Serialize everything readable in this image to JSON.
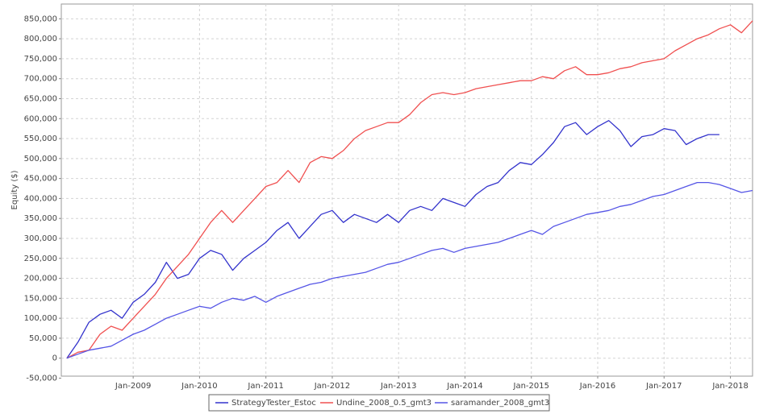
{
  "chart_data": {
    "type": "line",
    "y_label": "Equity ($)",
    "x": [
      "2008-01",
      "2008-03",
      "2008-05",
      "2008-07",
      "2008-09",
      "2008-11",
      "2009-01",
      "2009-03",
      "2009-05",
      "2009-07",
      "2009-09",
      "2009-11",
      "2010-01",
      "2010-03",
      "2010-05",
      "2010-07",
      "2010-09",
      "2010-11",
      "2011-01",
      "2011-03",
      "2011-05",
      "2011-07",
      "2011-09",
      "2011-11",
      "2012-01",
      "2012-03",
      "2012-05",
      "2012-07",
      "2012-09",
      "2012-11",
      "2013-01",
      "2013-03",
      "2013-05",
      "2013-07",
      "2013-09",
      "2013-11",
      "2014-01",
      "2014-03",
      "2014-05",
      "2014-07",
      "2014-09",
      "2014-11",
      "2015-01",
      "2015-03",
      "2015-05",
      "2015-07",
      "2015-09",
      "2015-11",
      "2016-01",
      "2016-03",
      "2016-05",
      "2016-07",
      "2016-09",
      "2016-11",
      "2017-01",
      "2017-03",
      "2017-05",
      "2017-07",
      "2017-09",
      "2017-11",
      "2018-01",
      "2018-03",
      "2018-05"
    ],
    "series": [
      {
        "name": "StrategyTester_Estoc",
        "color": "#3333cc",
        "values": [
          0,
          40000,
          90000,
          110000,
          120000,
          100000,
          140000,
          160000,
          190000,
          240000,
          200000,
          210000,
          250000,
          270000,
          260000,
          220000,
          250000,
          270000,
          290000,
          320000,
          340000,
          300000,
          330000,
          360000,
          370000,
          340000,
          360000,
          350000,
          340000,
          360000,
          340000,
          370000,
          380000,
          370000,
          400000,
          390000,
          380000,
          410000,
          430000,
          440000,
          470000,
          490000,
          485000,
          510000,
          540000,
          580000,
          590000,
          560000,
          580000,
          595000,
          570000,
          530000,
          555000,
          560000,
          575000,
          570000,
          535000,
          550000,
          560000,
          560000,
          null,
          null,
          null
        ]
      },
      {
        "name": "Undine_2008_0.5_gmt3",
        "color": "#f05050",
        "values": [
          0,
          15000,
          20000,
          60000,
          80000,
          70000,
          100000,
          130000,
          160000,
          200000,
          230000,
          260000,
          300000,
          340000,
          370000,
          340000,
          370000,
          400000,
          430000,
          440000,
          470000,
          440000,
          490000,
          505000,
          500000,
          520000,
          550000,
          570000,
          580000,
          590000,
          590000,
          610000,
          640000,
          660000,
          665000,
          660000,
          665000,
          675000,
          680000,
          685000,
          690000,
          695000,
          695000,
          705000,
          700000,
          720000,
          730000,
          710000,
          710000,
          715000,
          725000,
          730000,
          740000,
          745000,
          750000,
          770000,
          785000,
          800000,
          810000,
          825000,
          835000,
          815000,
          845000
        ]
      },
      {
        "name": "saramander_2008_gmt3",
        "color": "#5555e6",
        "values": [
          0,
          10000,
          20000,
          25000,
          30000,
          45000,
          60000,
          70000,
          85000,
          100000,
          110000,
          120000,
          130000,
          125000,
          140000,
          150000,
          145000,
          155000,
          140000,
          155000,
          165000,
          175000,
          185000,
          190000,
          200000,
          205000,
          210000,
          215000,
          225000,
          235000,
          240000,
          250000,
          260000,
          270000,
          275000,
          265000,
          275000,
          280000,
          285000,
          290000,
          300000,
          310000,
          320000,
          310000,
          330000,
          340000,
          350000,
          360000,
          365000,
          370000,
          380000,
          385000,
          395000,
          405000,
          410000,
          420000,
          430000,
          440000,
          440000,
          435000,
          425000,
          415000,
          420000
        ]
      }
    ],
    "xlim": [
      "2007-12",
      "2018-05"
    ],
    "xticks": [
      {
        "value": "2009-01",
        "label": "Jan-2009"
      },
      {
        "value": "2010-01",
        "label": "Jan-2010"
      },
      {
        "value": "2011-01",
        "label": "Jan-2011"
      },
      {
        "value": "2012-01",
        "label": "Jan-2012"
      },
      {
        "value": "2013-01",
        "label": "Jan-2013"
      },
      {
        "value": "2014-01",
        "label": "Jan-2014"
      },
      {
        "value": "2015-01",
        "label": "Jan-2015"
      },
      {
        "value": "2016-01",
        "label": "Jan-2016"
      },
      {
        "value": "2017-01",
        "label": "Jan-2017"
      },
      {
        "value": "2018-01",
        "label": "Jan-2018"
      }
    ],
    "ylim": [
      -45000,
      887000
    ],
    "yticks": [
      {
        "value": -50000,
        "label": "-50,000"
      },
      0,
      {
        "value": 50000,
        "label": "50,000"
      },
      {
        "value": 100000,
        "label": "100,000"
      },
      {
        "value": 150000,
        "label": "150,000"
      },
      {
        "value": 200000,
        "label": "200,000"
      },
      {
        "value": 250000,
        "label": "250,000"
      },
      {
        "value": 300000,
        "label": "300,000"
      },
      {
        "value": 350000,
        "label": "350,000"
      },
      {
        "value": 400000,
        "label": "400,000"
      },
      {
        "value": 450000,
        "label": "450,000"
      },
      {
        "value": 500000,
        "label": "500,000"
      },
      {
        "value": 550000,
        "label": "550,000"
      },
      {
        "value": 600000,
        "label": "600,000"
      },
      {
        "value": 650000,
        "label": "650,000"
      },
      {
        "value": 700000,
        "label": "700,000"
      },
      {
        "value": 750000,
        "label": "750,000"
      },
      {
        "value": 800000,
        "label": "800,000"
      },
      {
        "value": 850000,
        "label": "850,000"
      }
    ],
    "grid": true,
    "legend": "bottom"
  }
}
